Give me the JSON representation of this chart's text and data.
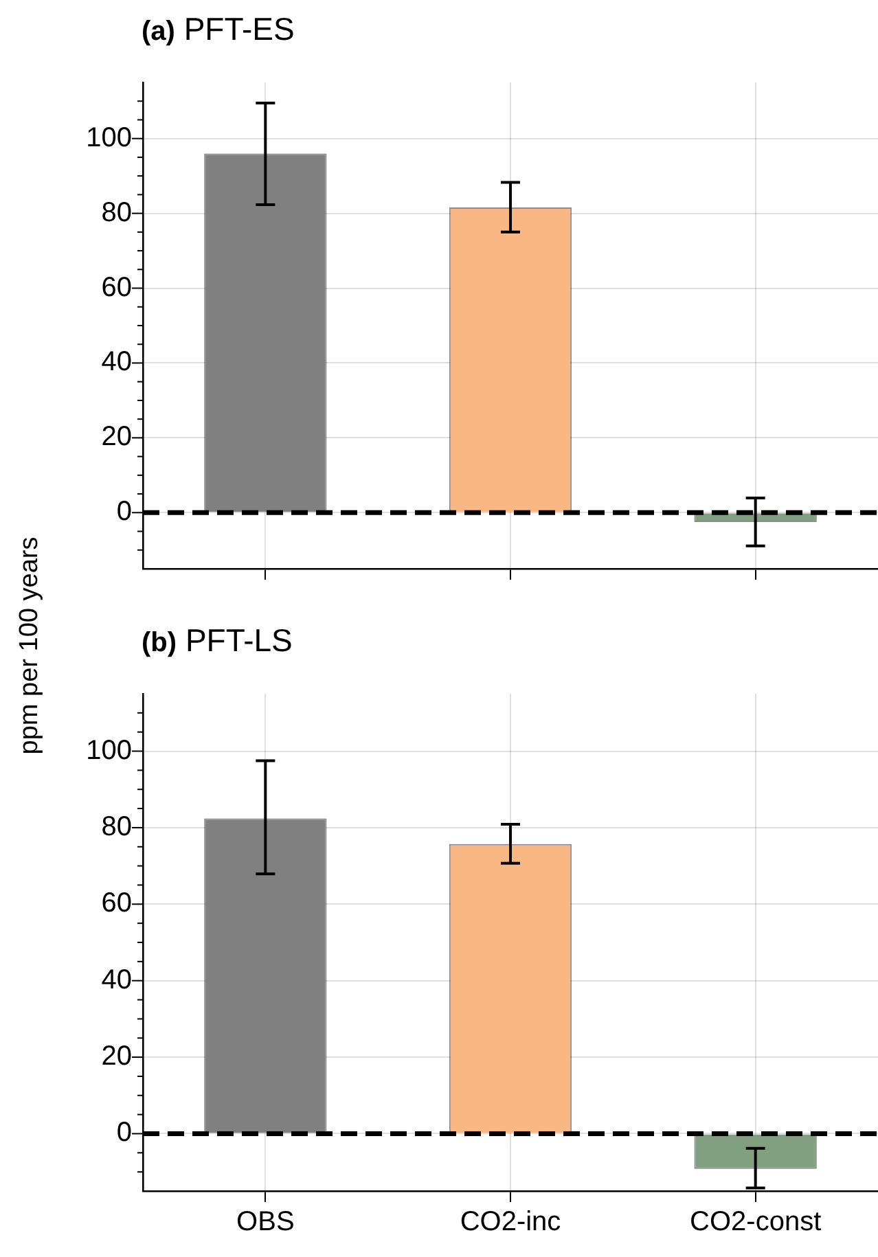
{
  "chart_data": [
    {
      "type": "bar",
      "title": "(a) PFT-ES",
      "ylabel": "ppm per 100 years",
      "categories": [
        null,
        null,
        null
      ],
      "values": [
        96,
        81.6,
        -2.5
      ],
      "colors": [
        "#808080",
        "#f9b784",
        "#80a080"
      ],
      "errors": [
        [
          82.3,
          109.5
        ],
        [
          75,
          88.3
        ],
        [
          -8.9,
          3.9
        ]
      ],
      "ylim": [
        -15,
        115
      ],
      "yticks": [
        {
          "value": -10,
          "label": null
        },
        {
          "value": -5,
          "label": null
        },
        0,
        {
          "value": 5,
          "label": null
        },
        {
          "value": 10,
          "label": null
        },
        {
          "value": 15,
          "label": null
        },
        20,
        {
          "value": 25,
          "label": null
        },
        {
          "value": 30,
          "label": null
        },
        {
          "value": 35,
          "label": null
        },
        40,
        {
          "value": 45,
          "label": null
        },
        {
          "value": 50,
          "label": null
        },
        {
          "value": 55,
          "label": null
        },
        60,
        {
          "value": 65,
          "label": null
        },
        {
          "value": 70,
          "label": null
        },
        {
          "value": 75,
          "label": null
        },
        80,
        {
          "value": 85,
          "label": null
        },
        {
          "value": 90,
          "label": null
        },
        {
          "value": 95,
          "label": null
        },
        100,
        {
          "value": 105,
          "label": null
        },
        {
          "value": 110,
          "label": null
        }
      ],
      "ref_lines": [
        {
          "axis": "y",
          "value": 0,
          "color": "#000000",
          "line_style": "dashed"
        }
      ],
      "grid": true,
      "tick_labels": "y"
    },
    {
      "type": "bar",
      "title": "(b) PFT-LS",
      "categories": [
        "OBS",
        "CO2-inc",
        "CO2-const"
      ],
      "values": [
        82.4,
        75.7,
        -9.2
      ],
      "colors": [
        "#808080",
        "#f9b784",
        "#80a080"
      ],
      "errors": [
        [
          67.9,
          97.5
        ],
        [
          70.7,
          80.9
        ],
        [
          -14.2,
          -3.8
        ]
      ],
      "ylim": [
        -15,
        115
      ],
      "yticks": [
        {
          "value": -10,
          "label": null
        },
        {
          "value": -5,
          "label": null
        },
        0,
        {
          "value": 5,
          "label": null
        },
        {
          "value": 10,
          "label": null
        },
        {
          "value": 15,
          "label": null
        },
        20,
        {
          "value": 25,
          "label": null
        },
        {
          "value": 30,
          "label": null
        },
        {
          "value": 35,
          "label": null
        },
        40,
        {
          "value": 45,
          "label": null
        },
        {
          "value": 50,
          "label": null
        },
        {
          "value": 55,
          "label": null
        },
        60,
        {
          "value": 65,
          "label": null
        },
        {
          "value": 70,
          "label": null
        },
        {
          "value": 75,
          "label": null
        },
        80,
        {
          "value": 85,
          "label": null
        },
        {
          "value": 90,
          "label": null
        },
        {
          "value": 95,
          "label": null
        },
        100,
        {
          "value": 105,
          "label": null
        },
        {
          "value": 110,
          "label": null
        }
      ],
      "ref_lines": [
        {
          "axis": "y",
          "value": 0,
          "color": "#000000",
          "line_style": "dashed"
        }
      ],
      "grid": true
    }
  ]
}
